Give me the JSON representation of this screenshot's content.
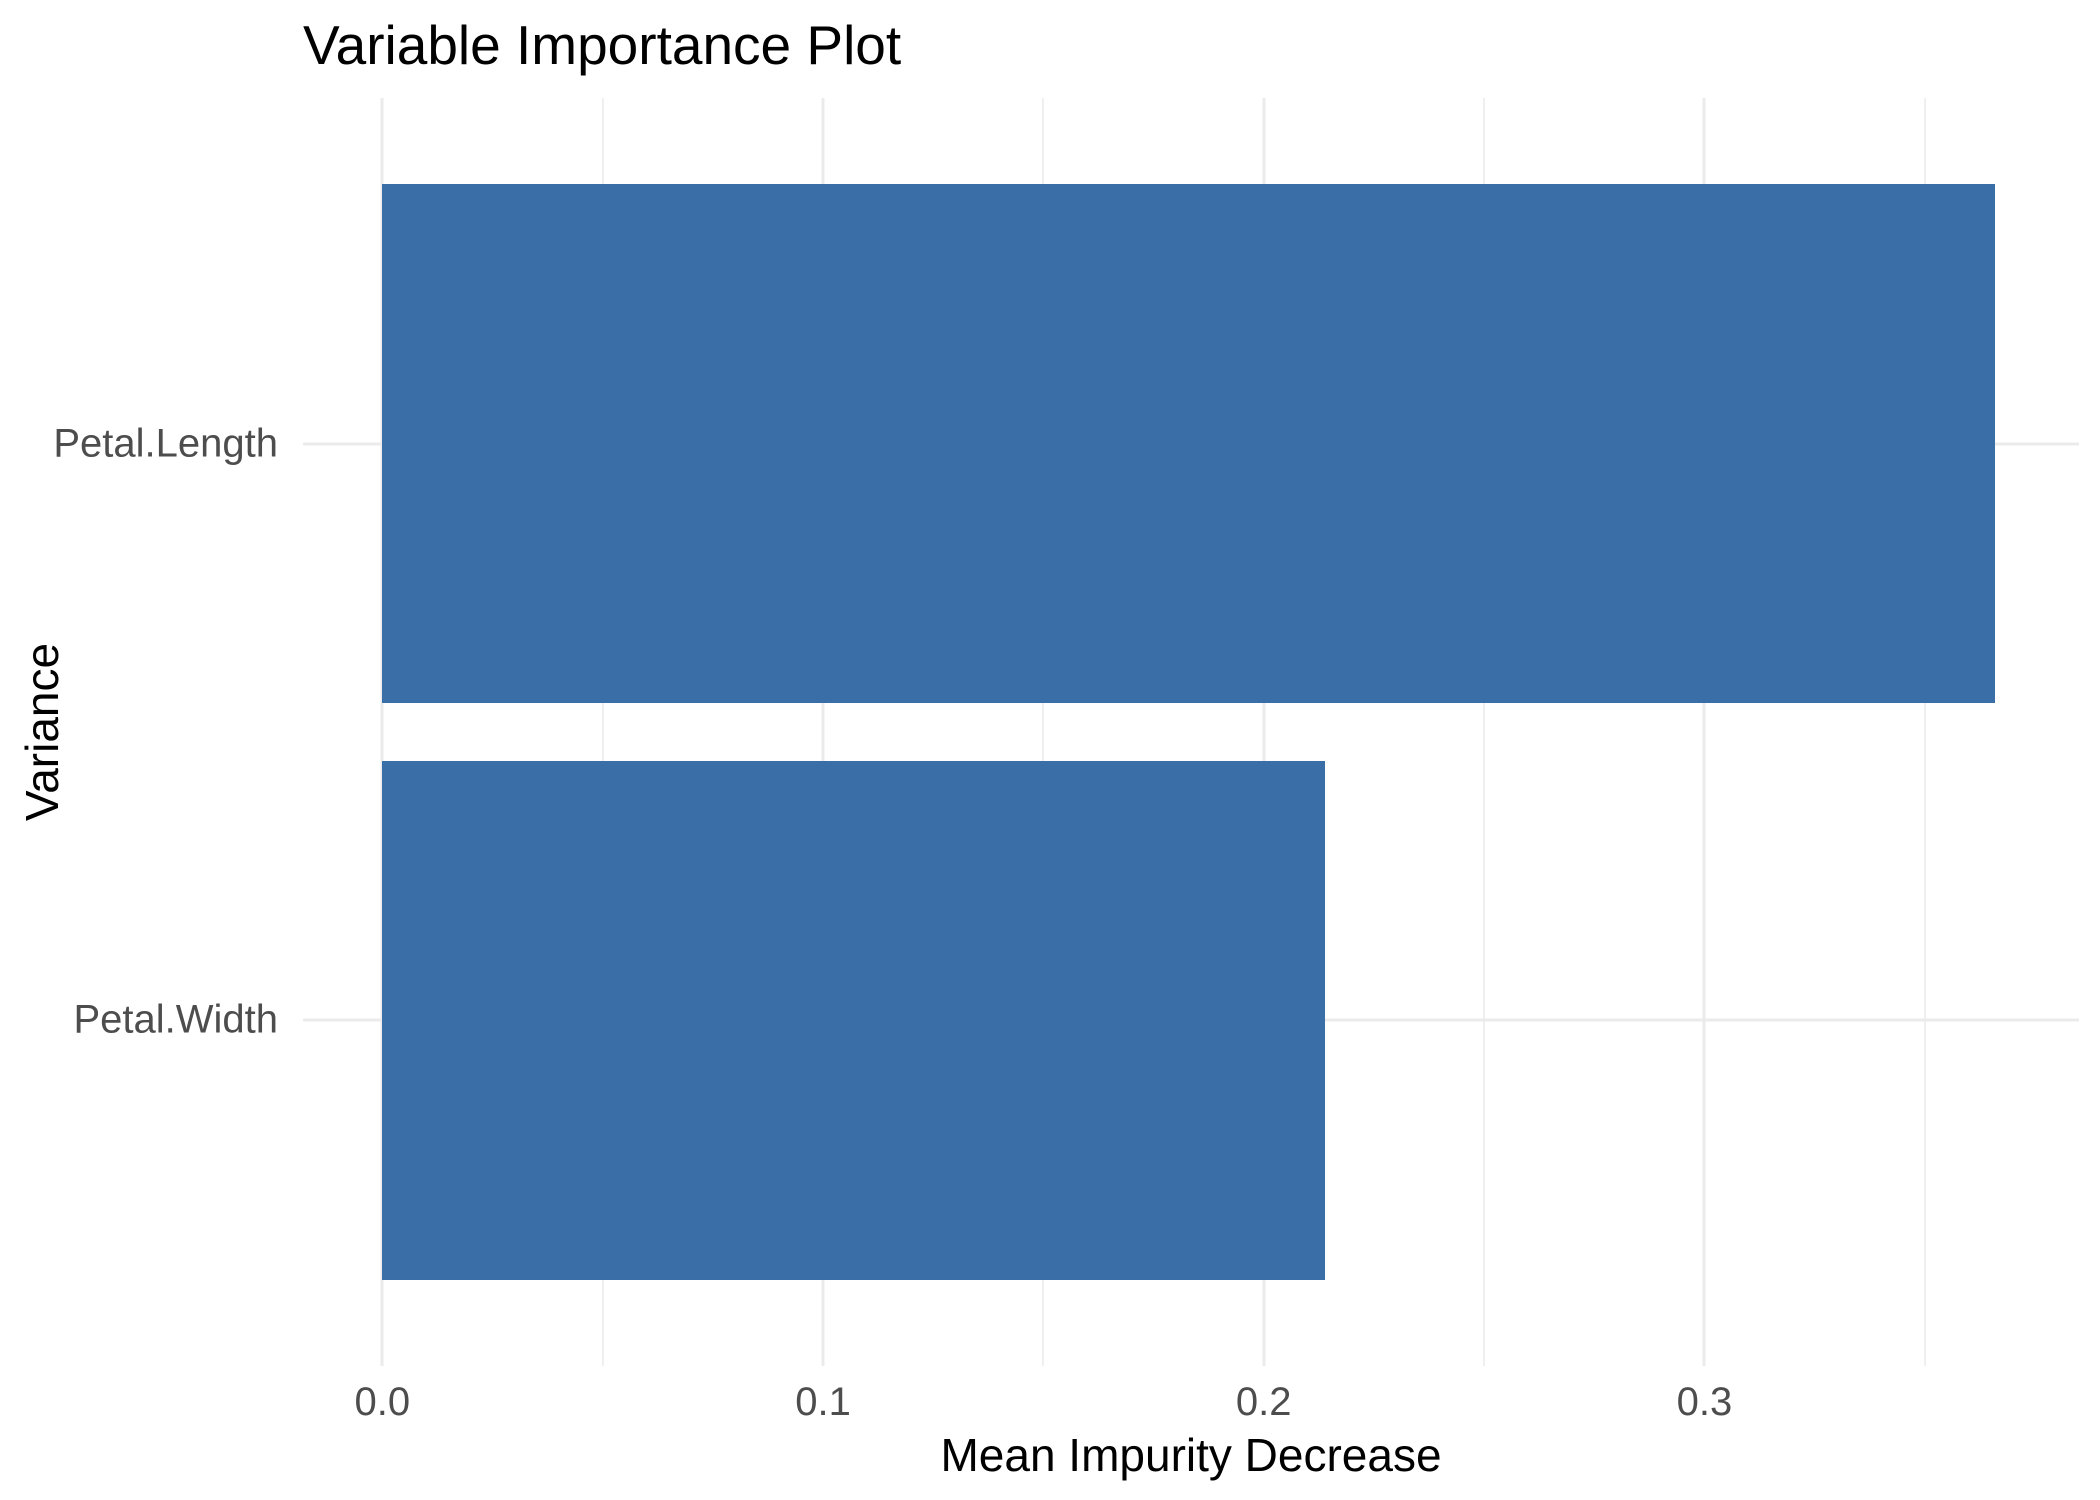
{
  "chart_data": {
    "type": "bar",
    "orientation": "horizontal",
    "title": "Variable Importance Plot",
    "xlabel": "Mean Impurity Decrease",
    "ylabel": "Variance",
    "categories": [
      "Petal.Length",
      "Petal.Width"
    ],
    "values": [
      0.366,
      0.214
    ],
    "x_ticks": {
      "values": [
        0.0,
        0.1,
        0.2,
        0.3
      ],
      "labels": [
        "0.0",
        "0.1",
        "0.2",
        "0.3"
      ]
    },
    "x_minor_ticks": [
      0.05,
      0.15,
      0.25,
      0.35
    ],
    "xlim": [
      -0.018,
      0.385
    ],
    "grid": "vertical major+minor gridlines, horizontal major gridline at each category center, no axis lines, no tick marks",
    "legend": false,
    "background": "#FFFFFF",
    "colors": {
      "bar": "#3A6EA6",
      "grid_major": "#EBEBEB",
      "grid_minor": "#EFEFEF",
      "title_text": "#000000",
      "axis_title_text": "#000000",
      "tick_text": "#4D4D4D"
    }
  }
}
